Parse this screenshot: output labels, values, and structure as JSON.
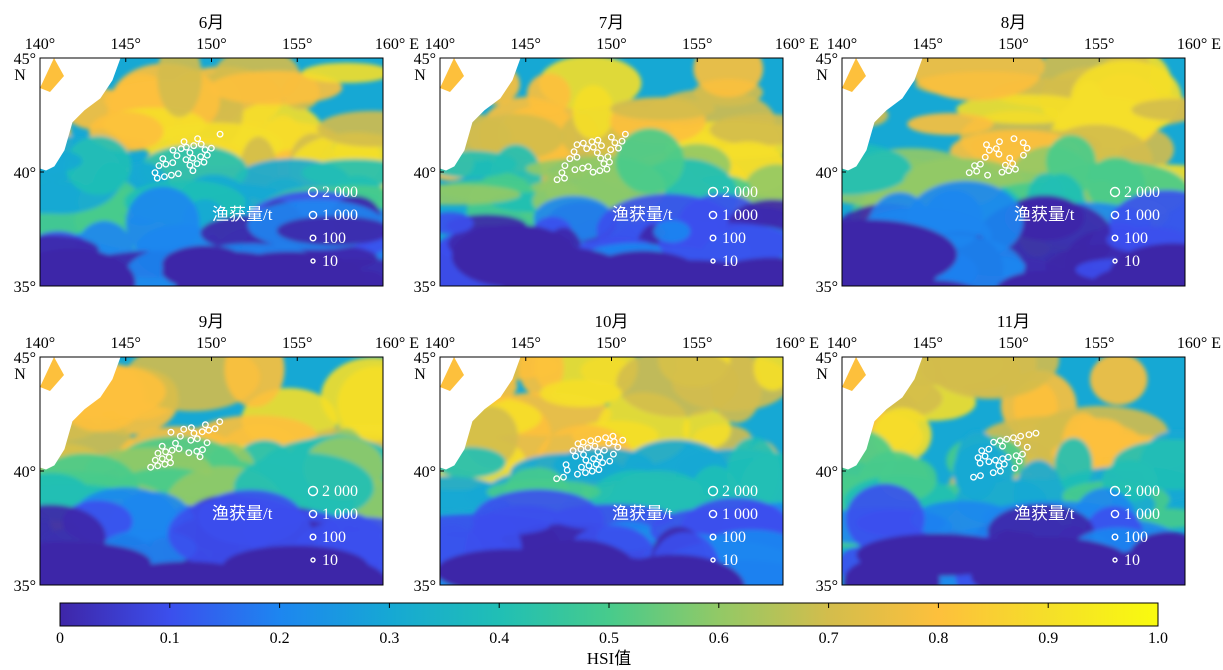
{
  "colors": {
    "colormap": [
      "#3e26a8",
      "#3b4fed",
      "#1d86f0",
      "#16a8d4",
      "#20bfb5",
      "#47cb8c",
      "#92c966",
      "#d3bd4c",
      "#fdc03c",
      "#f5df29",
      "#f9fb0e"
    ],
    "land": "#ffffff",
    "catch_marker": "#ffffff"
  },
  "panels": [
    {
      "title": "6月"
    },
    {
      "title": "7月"
    },
    {
      "title": "8月"
    },
    {
      "title": "9月"
    },
    {
      "title": "10月"
    },
    {
      "title": "11月"
    }
  ],
  "axes": {
    "lon_ticks": [
      "140°",
      "145°",
      "150°",
      "155°",
      "160° E"
    ],
    "lat_ticks": [
      "45°",
      "40°",
      "35°"
    ],
    "lat_hemisphere": "N"
  },
  "legend": {
    "title": "渔获量/t",
    "items": [
      "2 000",
      "1 000",
      "100",
      "10"
    ]
  },
  "colorbar": {
    "label": "HSI值",
    "ticks": [
      "0",
      "0.1",
      "0.2",
      "0.3",
      "0.4",
      "0.5",
      "0.6",
      "0.7",
      "0.8",
      "0.9",
      "1.0"
    ]
  }
}
